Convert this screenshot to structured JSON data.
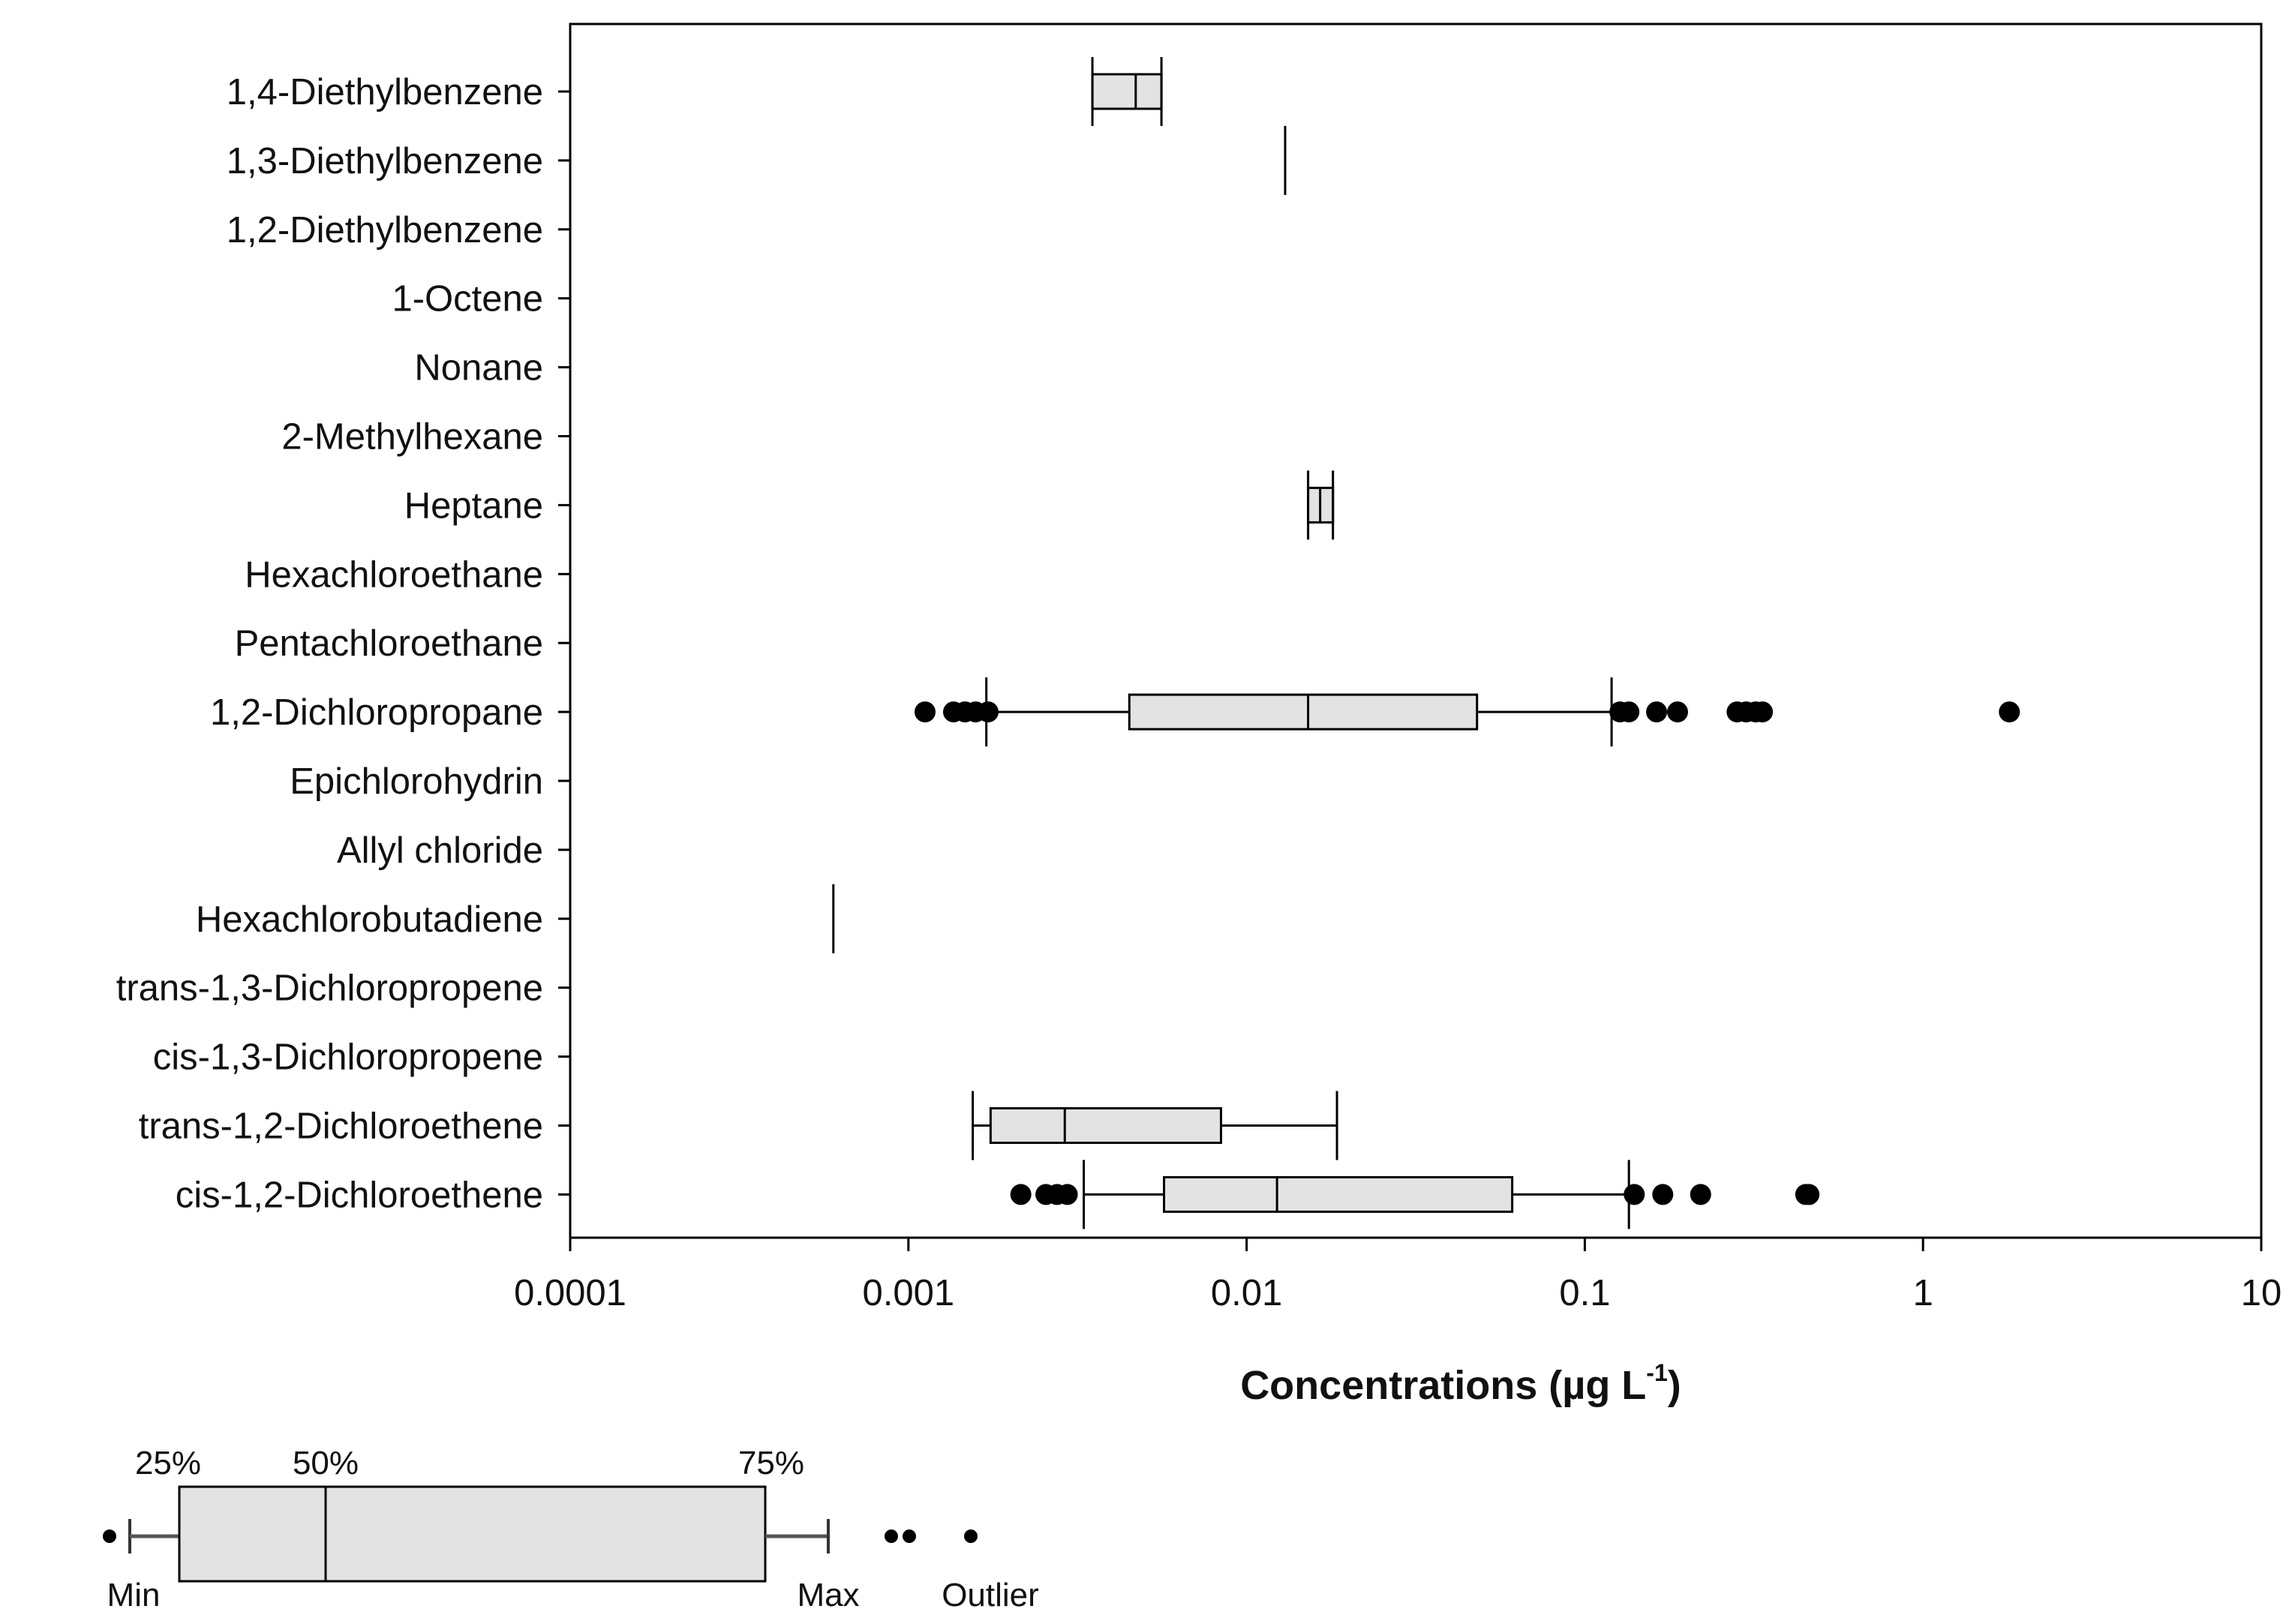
{
  "chart_data": {
    "type": "boxplot",
    "orientation": "horizontal",
    "x_scale": "log",
    "xlim": [
      0.0001,
      10
    ],
    "x_ticks": [
      "0.0001",
      "0.001",
      "0.01",
      "0.1",
      "1",
      "10"
    ],
    "xlabel": "Concentrations (µg L",
    "xlabel_superscript": "-1",
    "xlabel_suffix": ")",
    "box_fill": "#e3e3e3",
    "stroke_color": "#000000",
    "categories": [
      "1,4-Diethylbenzene",
      "1,3-Diethylbenzene",
      "1,2-Diethylbenzene",
      "1-Octene",
      "Nonane",
      "2-Methylhexane",
      "Heptane",
      "Hexachloroethane",
      "Pentachloroethane",
      "1,2-Dichloropropane",
      "Epichlorohydrin",
      "Allyl chloride",
      "Hexachlorobutadiene",
      "trans-1,3-Dichloropropene",
      "cis-1,3-Dichloropropene",
      "trans-1,2-Dichloroethene",
      "cis-1,2-Dichloroethene"
    ],
    "boxes": [
      {
        "category": "1,4-Diethylbenzene",
        "min": 0.0035,
        "q1": 0.0035,
        "median": 0.0047,
        "q3": 0.0056,
        "max": 0.0056,
        "outliers": []
      },
      {
        "category": "1,3-Diethylbenzene",
        "min": 0.013,
        "q1": 0.013,
        "median": 0.013,
        "q3": 0.013,
        "max": 0.013,
        "outliers": []
      },
      {
        "category": "Heptane",
        "min": 0.0152,
        "q1": 0.0152,
        "median": 0.0165,
        "q3": 0.018,
        "max": 0.018,
        "outliers": []
      },
      {
        "category": "1,2-Dichloropropane",
        "min": 0.0017,
        "q1": 0.0045,
        "median": 0.0152,
        "q3": 0.048,
        "max": 0.12,
        "outliers": [
          0.00112,
          0.00136,
          0.00147,
          0.00158,
          0.00172,
          0.127,
          0.135,
          0.163,
          0.188,
          0.282,
          0.3,
          0.32,
          0.335,
          1.8
        ]
      },
      {
        "category": "Hexachlorobutadiene",
        "min": 0.0006,
        "q1": 0.0006,
        "median": 0.0006,
        "q3": 0.0006,
        "max": 0.0006,
        "outliers": []
      },
      {
        "category": "trans-1,2-Dichloroethene",
        "min": 0.00155,
        "q1": 0.00175,
        "median": 0.0029,
        "q3": 0.0084,
        "max": 0.0185,
        "outliers": []
      },
      {
        "category": "cis-1,2-Dichloroethene",
        "min": 0.0033,
        "q1": 0.0057,
        "median": 0.0123,
        "q3": 0.061,
        "max": 0.135,
        "outliers": [
          0.00215,
          0.00255,
          0.00275,
          0.00295,
          0.14,
          0.17,
          0.22,
          0.45,
          0.46
        ]
      }
    ]
  },
  "legend": {
    "labels": {
      "q1": "25%",
      "median": "50%",
      "q3": "75%",
      "min": "Min",
      "max": "Max",
      "outlier": "Outlier"
    }
  }
}
